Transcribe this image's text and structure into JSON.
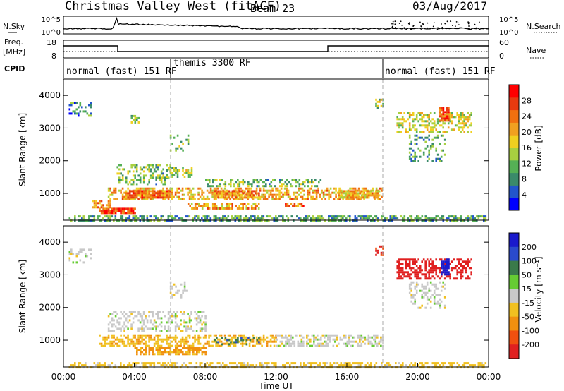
{
  "header": {
    "station": "Christmas Valley West (fitACF)",
    "beam": "Beam 23",
    "date": "03/Aug/2017"
  },
  "noise_panel": {
    "left_label": "N.Sky",
    "right_label": "N.Search",
    "left_ticks": [
      "10^5",
      "10^0"
    ],
    "right_ticks": [
      "10^5",
      "10^0"
    ]
  },
  "freq_panel": {
    "left_label_1": "Freq.",
    "left_label_2": "[MHz]",
    "right_label": "Nave",
    "left_ticks": [
      "18",
      "8"
    ],
    "right_ticks": [
      "60",
      "0"
    ]
  },
  "cpid": {
    "label": "CPID",
    "segments": [
      {
        "text": "normal (fast) 151 RF",
        "start_h": 0.0
      },
      {
        "text": "themis 3300 RF",
        "start_h": 6.0
      },
      {
        "text": "normal (fast) 151 RF",
        "start_h": 18.0
      }
    ]
  },
  "colors": {
    "power": [
      "#0000ff",
      "#2255cc",
      "#3a8a6a",
      "#55b055",
      "#a8d040",
      "#f0d020",
      "#f0a020",
      "#f07010",
      "#e83a10",
      "#ff0000"
    ],
    "velocity_pos": [
      "#1a1acc",
      "#2a4acc",
      "#3a7a4a",
      "#66cc33"
    ],
    "velocity_gray": "#c8c8c8",
    "velocity_neg": [
      "#f0c020",
      "#f09010",
      "#f05010",
      "#e02020"
    ]
  },
  "chart_data": [
    {
      "type": "heatmap",
      "name": "power",
      "ylabel": "Slant Range [km]",
      "yticks": [
        "1000",
        "2000",
        "3000",
        "4000"
      ],
      "ylim": [
        180,
        4500
      ],
      "xlim": [
        0,
        24
      ],
      "colorbar_label": "Power [dB]",
      "colorbar_ticks": [
        "4",
        "8",
        "12",
        "16",
        "20",
        "24",
        "28"
      ],
      "colorbar_range": [
        0,
        32
      ],
      "regions": [
        {
          "t0": 0.3,
          "t1": 23.8,
          "r0": 200,
          "r1": 330,
          "v": 10,
          "d": 0.6
        },
        {
          "t0": 2.0,
          "t1": 4.0,
          "r0": 400,
          "r1": 560,
          "v": 28,
          "d": 0.9
        },
        {
          "t0": 1.6,
          "t1": 2.6,
          "r0": 600,
          "r1": 800,
          "v": 22,
          "d": 0.7
        },
        {
          "t0": 2.5,
          "t1": 18.0,
          "r0": 820,
          "r1": 1180,
          "v": 20,
          "d": 0.55
        },
        {
          "t0": 3.5,
          "t1": 6.0,
          "r0": 880,
          "r1": 1100,
          "v": 24,
          "d": 0.85
        },
        {
          "t0": 8.5,
          "t1": 11.0,
          "r0": 880,
          "r1": 1100,
          "v": 22,
          "d": 0.8
        },
        {
          "t0": 15.5,
          "t1": 17.8,
          "r0": 850,
          "r1": 1100,
          "v": 20,
          "d": 0.8
        },
        {
          "t0": 7.0,
          "t1": 11.0,
          "r0": 550,
          "r1": 700,
          "v": 20,
          "d": 0.6
        },
        {
          "t0": 12.5,
          "t1": 13.5,
          "r0": 600,
          "r1": 720,
          "v": 24,
          "d": 0.7
        },
        {
          "t0": 3.0,
          "t1": 6.0,
          "r0": 1300,
          "r1": 1900,
          "v": 12,
          "d": 0.35
        },
        {
          "t0": 5.8,
          "t1": 7.2,
          "r0": 1500,
          "r1": 1800,
          "v": 14,
          "d": 0.5
        },
        {
          "t0": 8.0,
          "t1": 14.5,
          "r0": 1250,
          "r1": 1450,
          "v": 12,
          "d": 0.4
        },
        {
          "t0": 6.0,
          "t1": 7.0,
          "r0": 2300,
          "r1": 2800,
          "v": 12,
          "d": 0.3
        },
        {
          "t0": 3.8,
          "t1": 4.2,
          "r0": 3200,
          "r1": 3400,
          "v": 12,
          "d": 0.7
        },
        {
          "t0": 0.3,
          "t1": 1.5,
          "r0": 3400,
          "r1": 3800,
          "v": 8,
          "d": 0.35
        },
        {
          "t0": 17.6,
          "t1": 18.0,
          "r0": 3600,
          "r1": 3900,
          "v": 14,
          "d": 0.6
        },
        {
          "t0": 18.8,
          "t1": 23.0,
          "r0": 2900,
          "r1": 3500,
          "v": 16,
          "d": 0.45
        },
        {
          "t0": 21.2,
          "t1": 21.7,
          "r0": 3200,
          "r1": 3650,
          "v": 26,
          "d": 0.9
        },
        {
          "t0": 19.5,
          "t1": 21.5,
          "r0": 2000,
          "r1": 2800,
          "v": 10,
          "d": 0.3
        }
      ]
    },
    {
      "type": "heatmap",
      "name": "velocity",
      "ylabel": "Slant Range [km]",
      "yticks": [
        "1000",
        "2000",
        "3000",
        "4000"
      ],
      "ylim": [
        180,
        4500
      ],
      "xlim": [
        0,
        24
      ],
      "xticks": [
        "00:00",
        "04:00",
        "08:00",
        "12:00",
        "16:00",
        "20:00",
        "00:00"
      ],
      "xlabel": "Time UT",
      "colorbar_label": "Velocity [m s⁻¹]",
      "colorbar_ticks": [
        "200",
        "100",
        "50",
        "15",
        "-15",
        "-50",
        "-100",
        "-200"
      ],
      "regions": [
        {
          "t0": 0.3,
          "t1": 23.8,
          "r0": 200,
          "r1": 330,
          "v": -30,
          "d": 0.5
        },
        {
          "t0": 2.0,
          "t1": 12.0,
          "r0": 820,
          "r1": 1180,
          "v": -40,
          "d": 0.55
        },
        {
          "t0": 4.0,
          "t1": 8.0,
          "r0": 600,
          "r1": 800,
          "v": -60,
          "d": 0.7
        },
        {
          "t0": 8.5,
          "t1": 11.0,
          "r0": 850,
          "r1": 1100,
          "v": 60,
          "d": 0.3
        },
        {
          "t0": 12.0,
          "t1": 18.0,
          "r0": 820,
          "r1": 1180,
          "v": 0,
          "d": 0.5
        },
        {
          "t0": 2.5,
          "t1": 8.0,
          "r0": 1300,
          "r1": 1900,
          "v": 0,
          "d": 0.4
        },
        {
          "t0": 6.0,
          "t1": 7.0,
          "r0": 2300,
          "r1": 2800,
          "v": 0,
          "d": 0.3
        },
        {
          "t0": 0.3,
          "t1": 1.5,
          "r0": 3400,
          "r1": 3800,
          "v": 0,
          "d": 0.35
        },
        {
          "t0": 17.6,
          "t1": 18.0,
          "r0": 3600,
          "r1": 3900,
          "v": -150,
          "d": 0.6
        },
        {
          "t0": 18.8,
          "t1": 23.0,
          "r0": 2900,
          "r1": 3500,
          "v": -180,
          "d": 0.5
        },
        {
          "t0": 21.3,
          "t1": 21.7,
          "r0": 3000,
          "r1": 3500,
          "v": 180,
          "d": 0.8
        },
        {
          "t0": 19.5,
          "t1": 21.5,
          "r0": 2000,
          "r1": 2800,
          "v": 0,
          "d": 0.3
        }
      ]
    }
  ]
}
